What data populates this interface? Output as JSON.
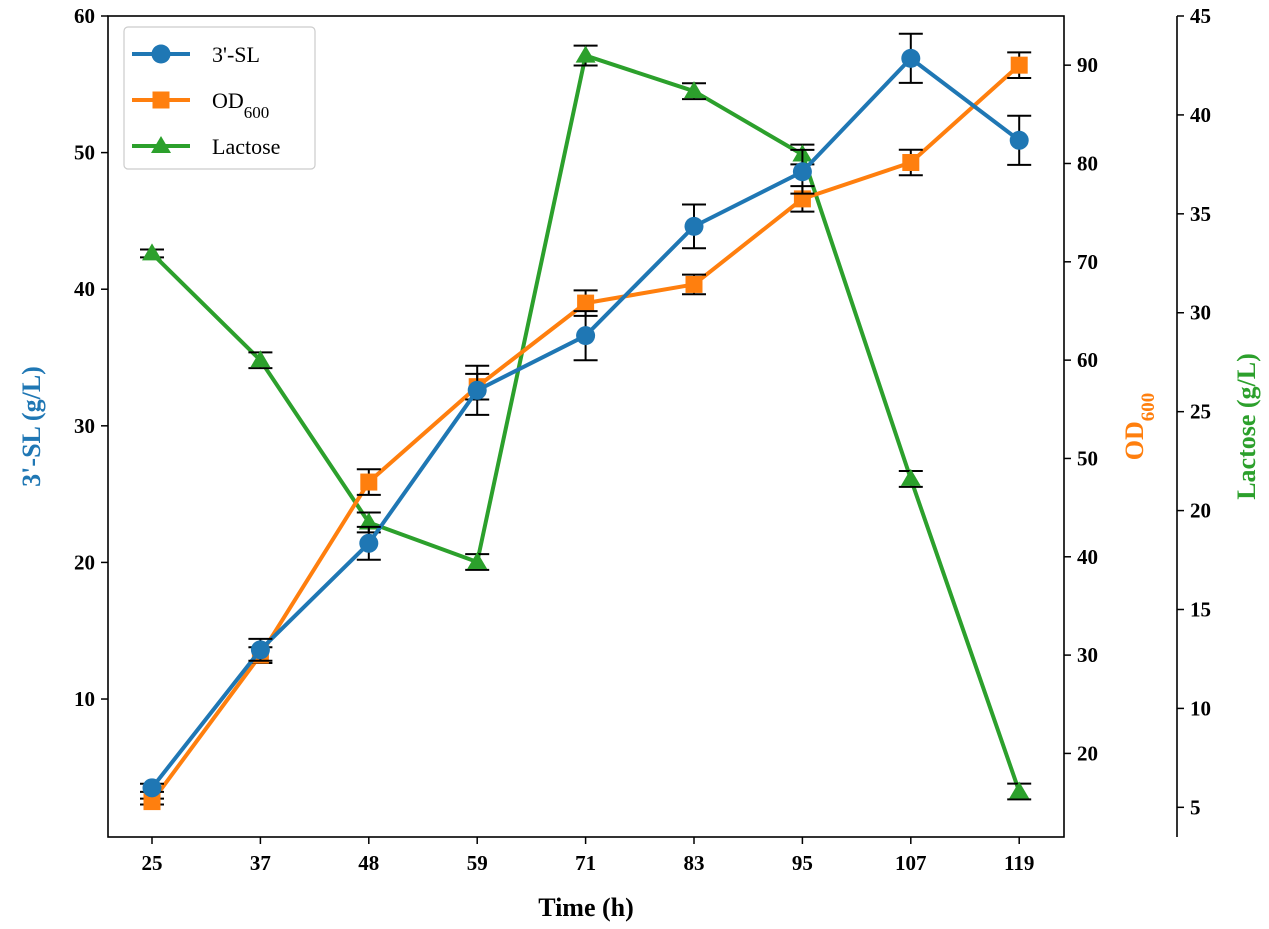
{
  "chart_data": {
    "type": "line",
    "x": [
      25,
      37,
      48,
      59,
      71,
      83,
      95,
      107,
      119
    ],
    "xlabel": "Time (h)",
    "grid": false,
    "legend_position": "top-left",
    "axes": {
      "left": {
        "label": "3'-SL (g/L)",
        "ticks": [
          10,
          20,
          30,
          40,
          50,
          60
        ],
        "range": [
          -0.1,
          60.0
        ],
        "color": "#1f77b4"
      },
      "right": {
        "label_main": "OD",
        "label_sub": "600",
        "ticks": [
          20,
          30,
          40,
          50,
          60,
          70,
          80,
          90
        ],
        "range": [
          11.5,
          95.0
        ],
        "color": "#ff7f0e"
      },
      "far_right": {
        "label": "Lactose (g/L)",
        "ticks": [
          5,
          10,
          15,
          20,
          25,
          30,
          35,
          40,
          45
        ],
        "range": [
          3.5,
          45.0
        ],
        "color": "#2ca02c"
      }
    },
    "series": [
      {
        "name": "3'-SL",
        "axis": "left",
        "color": "#1f77b4",
        "marker": "circle",
        "values": [
          3.5,
          13.6,
          21.4,
          32.6,
          36.6,
          44.6,
          48.6,
          56.9,
          50.9
        ],
        "errors": [
          0.3,
          0.8,
          1.2,
          1.8,
          1.8,
          1.6,
          1.6,
          1.8,
          1.8
        ]
      },
      {
        "name": "OD",
        "name_sub": "600",
        "axis": "right",
        "color": "#ff7f0e",
        "marker": "square",
        "values": [
          15.1,
          30.0,
          47.6,
          57.3,
          65.8,
          67.7,
          76.4,
          80.1,
          90.0
        ],
        "errors": [
          0.3,
          0.8,
          1.3,
          1.3,
          1.3,
          1.0,
          1.3,
          1.3,
          1.3
        ]
      },
      {
        "name": "Lactose",
        "axis": "far_right",
        "color": "#2ca02c",
        "marker": "triangle",
        "values": [
          33.0,
          27.6,
          19.4,
          17.4,
          43.0,
          41.2,
          38.0,
          21.6,
          5.8
        ],
        "errors": [
          0.2,
          0.4,
          0.5,
          0.4,
          0.5,
          0.4,
          0.5,
          0.4,
          0.4
        ]
      }
    ]
  }
}
